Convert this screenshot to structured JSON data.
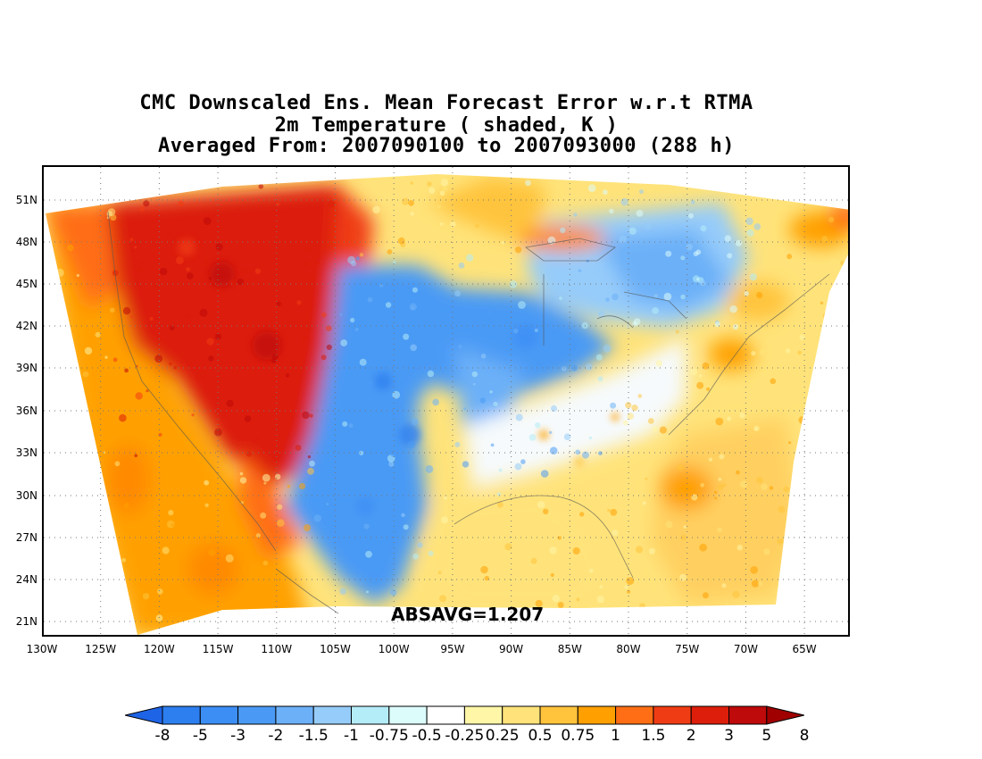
{
  "title": {
    "line1": "CMC Downscaled Ens. Mean Forecast Error w.r.t RTMA",
    "line2": "2m Temperature ( shaded, K )",
    "line3": "Averaged From: 2007090100 to 2007093000 (288 h)"
  },
  "axes": {
    "lat_labels": [
      "51N",
      "48N",
      "45N",
      "42N",
      "39N",
      "36N",
      "33N",
      "30N",
      "27N",
      "24N",
      "21N"
    ],
    "lon_labels": [
      "130W",
      "125W",
      "120W",
      "115W",
      "110W",
      "105W",
      "100W",
      "95W",
      "90W",
      "85W",
      "80W",
      "75W",
      "70W",
      "65W"
    ]
  },
  "annotation": "ABSAVG=1.207",
  "colorbar": {
    "labels": [
      "-8",
      "-5",
      "-3",
      "-2",
      "-1.5",
      "-1",
      "-0.75",
      "-0.5",
      "-0.25",
      "0.25",
      "0.5",
      "0.75",
      "1",
      "1.5",
      "2",
      "3",
      "5",
      "8"
    ],
    "colors": [
      "#1e64e6",
      "#2d7ff0",
      "#3c8ef5",
      "#4a9af5",
      "#6cb0f8",
      "#96ccfa",
      "#b4ecf8",
      "#dcfcfc",
      "#ffffff",
      "#fff6a8",
      "#ffe37a",
      "#ffc43c",
      "#ffa000",
      "#ff6e14",
      "#f03c14",
      "#dc1e0a",
      "#be0a0a",
      "#a00000"
    ]
  }
}
